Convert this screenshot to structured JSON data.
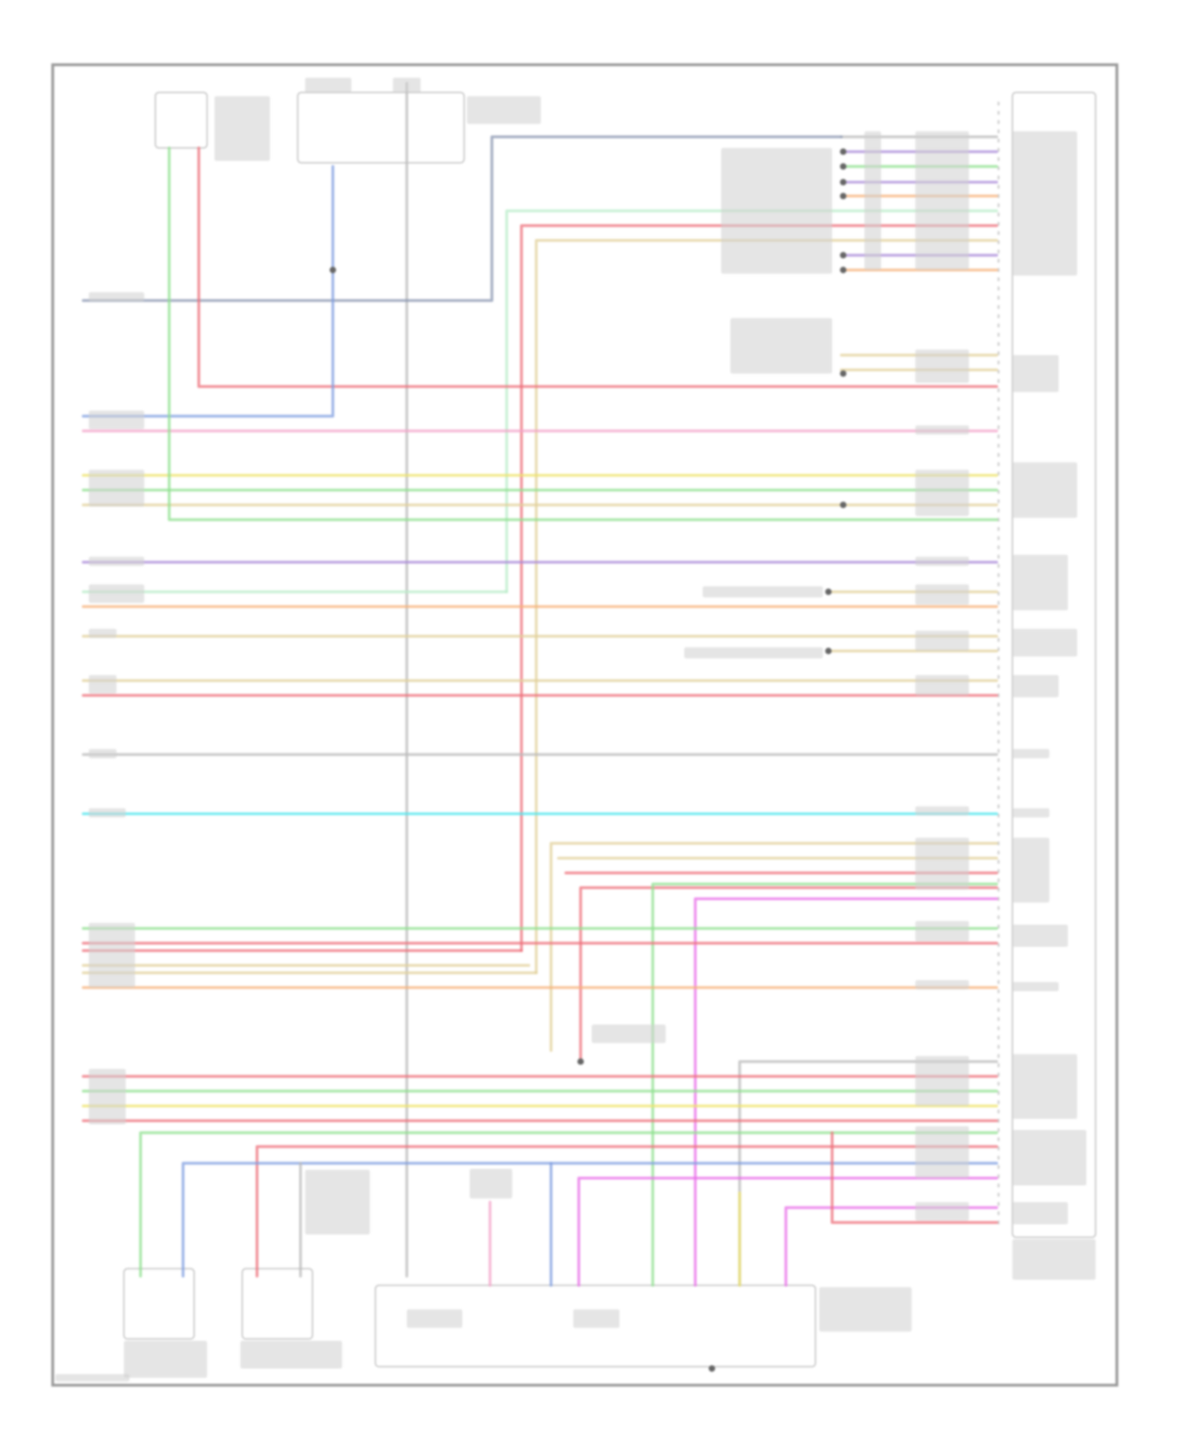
{
  "diagram": {
    "type": "wiring-diagram",
    "wire_colors": {
      "gray": "#b9b9b9",
      "purple": "#a98ad8",
      "green": "#8fe08f",
      "lightgreen": "#b8ecc8",
      "yellow": "#eee36a",
      "orange": "#f7b27a",
      "red": "#ee6f7a",
      "pink": "#f3a3c8",
      "tan": "#e2d09a",
      "blue": "#7f9ee0",
      "cyan": "#4fe6ee",
      "magenta": "#e86ee8",
      "slate": "#8a96b0"
    },
    "frame_color": "#9a9a9a",
    "splice_color": "#555555"
  }
}
